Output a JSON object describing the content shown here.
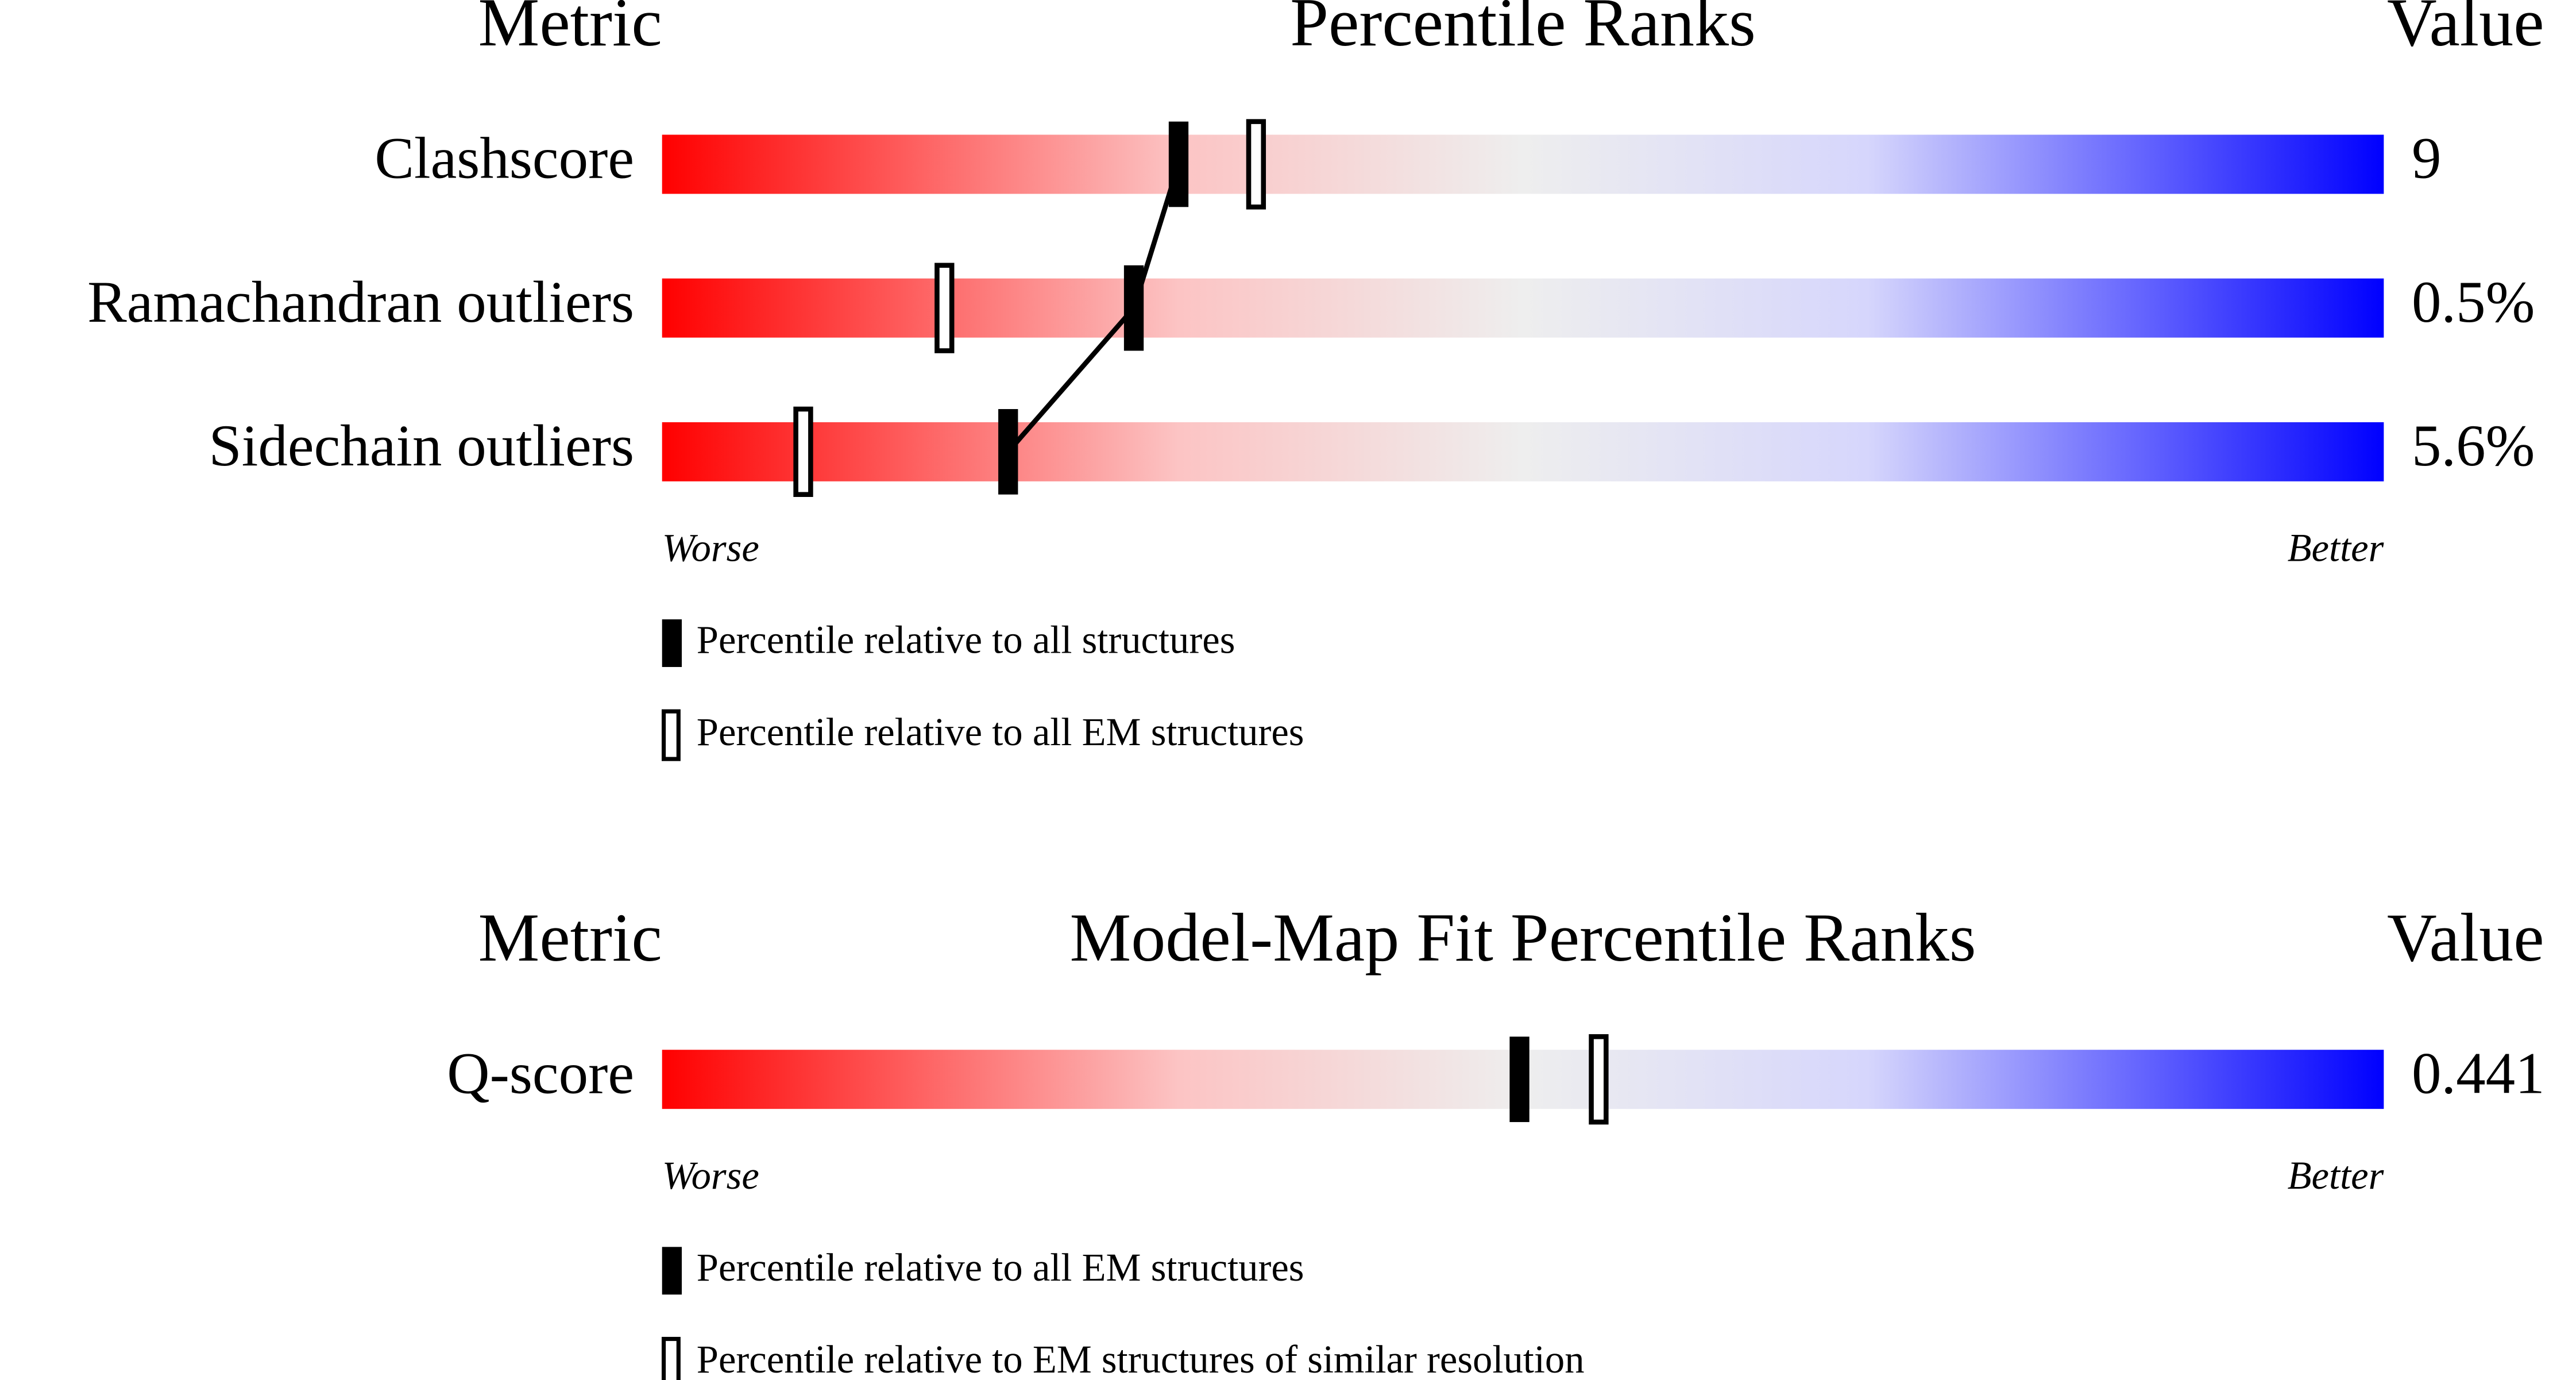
{
  "chart_data": [
    {
      "type": "percentile-slider",
      "title_left": "Metric",
      "title": "Percentile Ranks",
      "title_right": "Value",
      "categories": [
        "Clashscore",
        "Ramachandran outliers",
        "Sidechain outliers"
      ],
      "metric_values": [
        "9",
        "0.5%",
        "5.6%"
      ],
      "xlim": [
        0,
        100
      ],
      "worse_label": "Worse",
      "better_label": "Better",
      "connect": true,
      "series": [
        {
          "name": "Percentile relative to all structures",
          "color": "#000000",
          "marker": "filled",
          "values": [
            30,
            27.4,
            20.1
          ]
        },
        {
          "name": "Percentile relative to all EM structures",
          "color": "#000000",
          "marker": "hollow",
          "values": [
            34.5,
            16.4,
            8.2
          ]
        }
      ]
    },
    {
      "type": "percentile-slider",
      "title_left": "Metric",
      "title": "Model-Map Fit Percentile Ranks",
      "title_right": "Value",
      "categories": [
        "Q-score"
      ],
      "metric_values": [
        "0.441"
      ],
      "xlim": [
        0,
        100
      ],
      "worse_label": "Worse",
      "better_label": "Better",
      "connect": false,
      "series": [
        {
          "name": "Percentile relative to all EM structures",
          "color": "#000000",
          "marker": "filled",
          "values": [
            49.8
          ]
        },
        {
          "name": "Percentile relative to EM structures of similar resolution",
          "color": "#000000",
          "marker": "hollow",
          "values": [
            54.4
          ]
        }
      ]
    }
  ]
}
